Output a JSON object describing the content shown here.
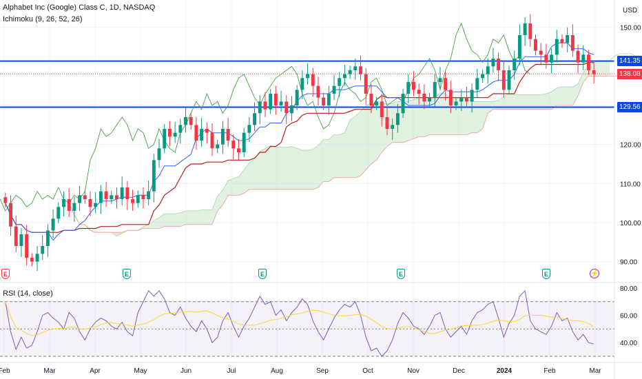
{
  "header": {
    "title": "Alphabet Inc (Google) Class C, 1D, NASDAQ",
    "indicator": "Ichimoku (9, 26, 52, 26)",
    "currency": "USD"
  },
  "rsi_panel": {
    "label": "RSI (14, close)"
  },
  "colors": {
    "up": "#089981",
    "down": "#f23645",
    "conversion": "#2962ff",
    "base": "#b71c1c",
    "lagging": "#43a047",
    "cloud_bull": "#a5d6a7",
    "cloud_bear": "#ef9a9a",
    "level": "#0d47e1",
    "rsi": "#7e57c2",
    "rsi_ma": "#fdd835",
    "last_price": "#f23645"
  },
  "events": [
    {
      "date": "2023-02-02",
      "type": "earnings",
      "label": "E",
      "color": "#f23645"
    },
    {
      "date": "2023-04-25",
      "type": "earnings",
      "label": "E",
      "color": "#089981"
    },
    {
      "date": "2023-07-25",
      "type": "earnings",
      "label": "E",
      "color": "#089981"
    },
    {
      "date": "2023-10-24",
      "type": "earnings",
      "label": "E",
      "color": "#089981"
    },
    {
      "date": "2024-01-30",
      "type": "earnings",
      "label": "E",
      "color": "#089981"
    },
    {
      "date": "2024-02-27",
      "type": "dividend",
      "label": "⚡",
      "color": "#9c27b0"
    }
  ],
  "chart_data": [
    {
      "type": "candlestick",
      "title": "Alphabet Inc (Google) Class C, 1D, NASDAQ",
      "ylim": [
        85,
        157
      ],
      "y_ticks": [
        90.0,
        100.0,
        110.0,
        120.0,
        130.0,
        150.0
      ],
      "y_tick_labels": [
        "90.00",
        "100.00",
        "110.00",
        "120.00",
        "130.00",
        "150.00"
      ],
      "x_tick_labels": [
        "Feb",
        "Mar",
        "Apr",
        "May",
        "Jun",
        "Jul",
        "Aug",
        "Sep",
        "Oct",
        "Nov",
        "Dec",
        "2024",
        "Feb",
        "Mar"
      ],
      "grid": true,
      "horizontal_levels": [
        {
          "value": 141.35,
          "label": "141.35"
        },
        {
          "value": 129.56,
          "label": "129.56"
        }
      ],
      "last_price": {
        "value": 138.08,
        "label": "138.08"
      },
      "close_series": [
        105,
        99,
        94,
        97,
        91,
        90,
        92,
        94,
        98,
        101,
        104,
        106,
        103,
        105,
        107,
        106,
        104,
        105,
        108,
        106,
        107,
        106,
        109,
        106,
        105,
        107,
        106,
        108,
        116,
        119,
        124,
        122,
        123,
        125,
        127,
        125,
        121,
        124,
        123,
        119,
        120,
        124,
        121,
        119,
        118,
        123,
        125,
        128,
        131,
        129,
        133,
        130,
        131,
        128,
        130,
        134,
        137,
        138,
        135,
        132,
        130,
        133,
        135,
        137,
        138,
        139,
        140,
        138,
        133,
        130,
        131,
        127,
        124,
        125,
        128,
        133,
        136,
        134,
        133,
        131,
        132,
        136,
        137,
        134,
        130,
        131,
        132,
        131,
        134,
        137,
        138,
        140,
        142,
        139,
        134,
        139,
        142,
        148,
        151,
        147,
        144,
        143,
        141,
        143,
        147,
        146,
        148,
        144,
        141,
        143,
        139,
        138
      ],
      "ichimoku": {
        "parameters": [
          9,
          26,
          52,
          26
        ],
        "lines": [
          "conversion",
          "base",
          "lagging",
          "leading_span_a",
          "leading_span_b"
        ]
      }
    },
    {
      "type": "line",
      "title": "RSI (14, close)",
      "ylim": [
        27,
        83
      ],
      "y_ticks": [
        40.0,
        60.0,
        80.0
      ],
      "y_tick_labels": [
        "40.00",
        "60.00",
        "80.00"
      ],
      "bands": [
        30,
        50,
        70
      ],
      "series": [
        {
          "values": [
            70,
            48,
            35,
            44,
            36,
            38,
            48,
            60,
            62,
            58,
            55,
            50,
            62,
            58,
            48,
            42,
            50,
            55,
            58,
            56,
            52,
            50,
            55,
            48,
            45,
            62,
            70,
            78,
            74,
            78,
            72,
            62,
            60,
            66,
            58,
            52,
            48,
            56,
            50,
            40,
            44,
            56,
            62,
            52,
            44,
            52,
            58,
            66,
            74,
            68,
            70,
            60,
            64,
            56,
            62,
            66,
            72,
            68,
            56,
            48,
            42,
            50,
            58,
            64,
            68,
            66,
            70,
            60,
            44,
            34,
            36,
            30,
            34,
            42,
            54,
            62,
            58,
            52,
            50,
            46,
            52,
            60,
            62,
            50,
            44,
            48,
            52,
            46,
            56,
            62,
            64,
            68,
            70,
            58,
            44,
            54,
            60,
            74,
            78,
            56,
            50,
            48,
            46,
            52,
            62,
            56,
            58,
            48,
            42,
            46,
            40,
            39
          ]
        }
      ]
    }
  ]
}
